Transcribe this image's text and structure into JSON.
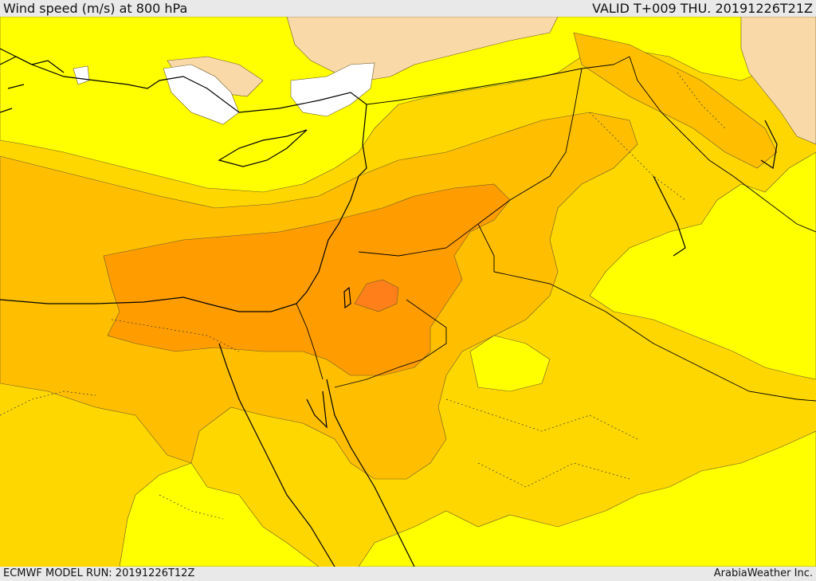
{
  "header": {
    "title": "Wind speed (m/s) at 800 hPa",
    "valid_time": "VALID T+009 THU. 20191226T21Z"
  },
  "footer": {
    "model_run": "ECMWF MODEL RUN: 20191226T12Z",
    "credit": "ArabiaWeather Inc."
  },
  "map": {
    "field": "wind speed",
    "level_hpa": 800,
    "units": "m/s",
    "colors": {
      "calm": "#ffffff",
      "light": "#f9d9a8",
      "low": "#ffff00",
      "moderate": "#ffd700",
      "fresh": "#ffbf00",
      "strong": "#ff9d00",
      "very_strong": "#ff7f1a",
      "coastline": "#000000",
      "borders": "#000000",
      "contours": "#6b5a2a"
    }
  }
}
